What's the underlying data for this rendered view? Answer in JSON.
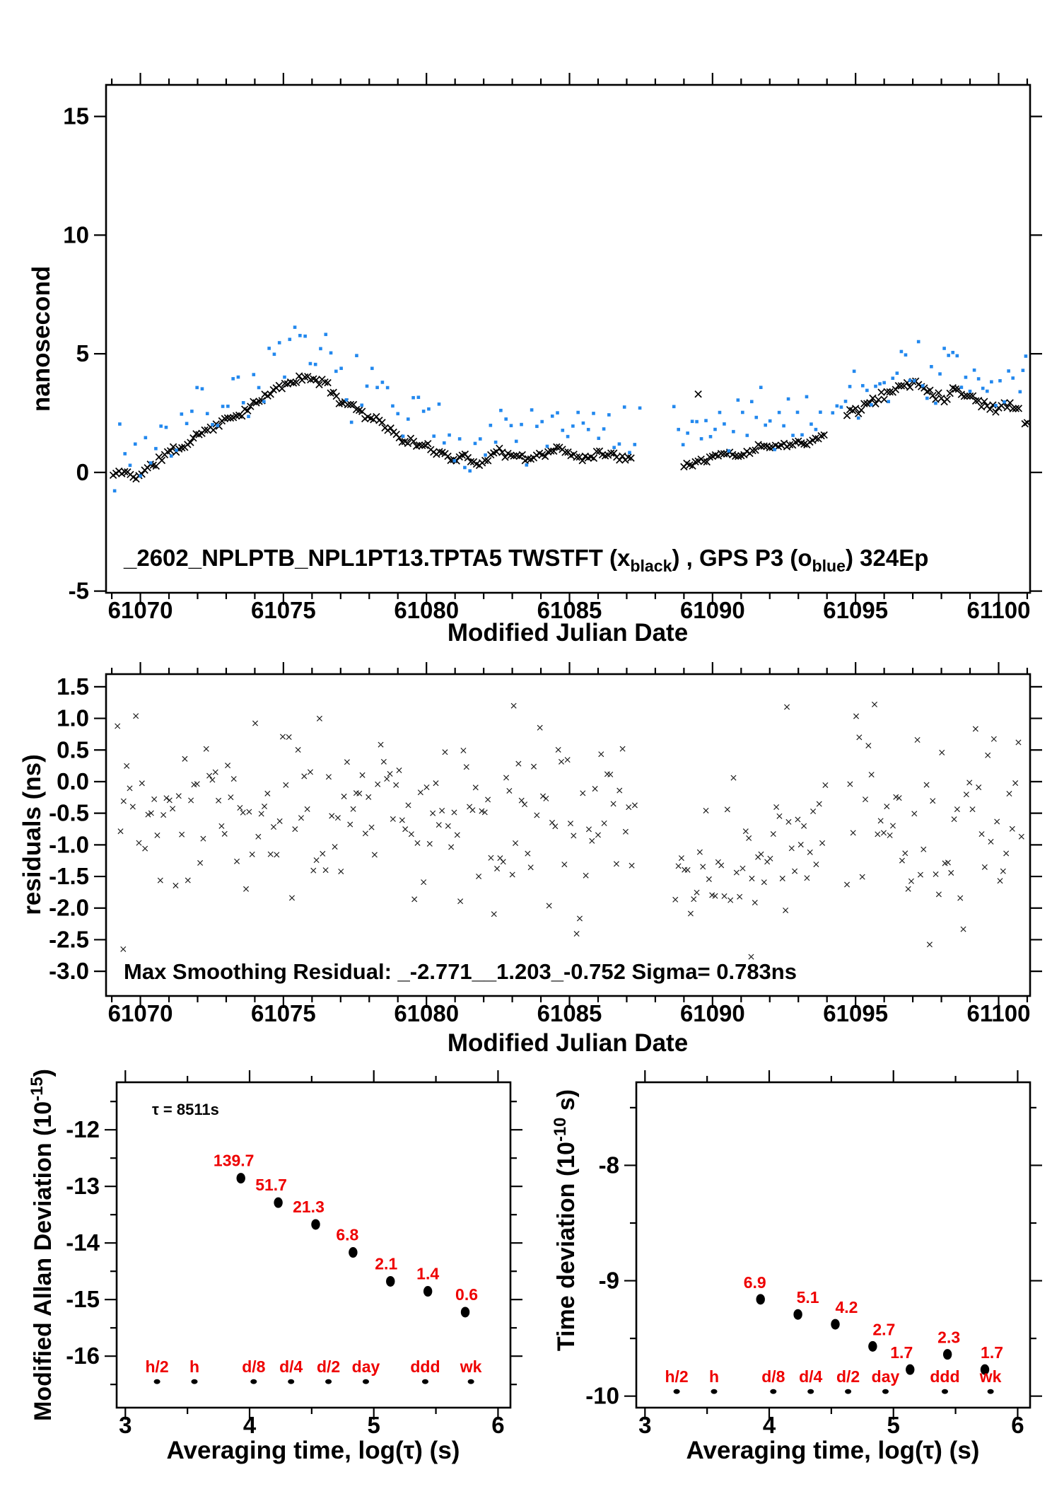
{
  "colors": {
    "background": "#ffffff",
    "axis": "#000000",
    "twstft_black": "#000000",
    "gps_blue": "#2288ee",
    "red_annotation": "#ee0000",
    "residual_marker": "#1a1a1a"
  },
  "chart_data": [
    {
      "type": "scatter",
      "panel": "time-series",
      "title_segments": [
        {
          "t": "_2602_NPLPTB_NPL1PT13.TPTA5     TWSTFT (x"
        },
        {
          "t": "black",
          "sub": true
        },
        {
          "t": ") ,  GPS P3 (o"
        },
        {
          "t": "blue",
          "sub": true
        },
        {
          "t": ")  324Ep"
        }
      ],
      "xlabel": "Modified Julian Date",
      "ylabel": "nanosecond",
      "xlim": [
        61068.8,
        61101.1
      ],
      "ylim": [
        -5.07,
        16.33
      ],
      "xticks": {
        "values": [
          61070,
          61075,
          61080,
          61085,
          61090,
          61095,
          61100
        ],
        "labels": [
          "61070",
          "61075",
          "61080",
          "61085",
          "61090",
          "61095",
          "61100"
        ],
        "minor_step": 1
      },
      "yticks": {
        "values": [
          -5,
          0,
          5,
          10,
          15
        ],
        "labels": [
          "-5",
          "0",
          "5",
          "10",
          "15"
        ]
      },
      "series": [
        {
          "name": "TWSTFT",
          "marker": "x",
          "color": "#000000",
          "seed": 11,
          "anchors": [
            [
              61069.0,
              -0.15
            ],
            [
              61069.4,
              0.05
            ],
            [
              61069.8,
              -0.2
            ],
            [
              61070.2,
              0.1
            ],
            [
              61070.6,
              0.45
            ],
            [
              61071.0,
              0.9
            ],
            [
              61071.5,
              1.05
            ],
            [
              61072.0,
              1.6
            ],
            [
              61072.5,
              1.9
            ],
            [
              61073.0,
              2.2
            ],
            [
              61073.5,
              2.5
            ],
            [
              61074.0,
              2.85
            ],
            [
              61074.5,
              3.3
            ],
            [
              61075.0,
              3.7
            ],
            [
              61075.5,
              3.9
            ],
            [
              61075.9,
              4.0
            ],
            [
              61076.3,
              3.85
            ],
            [
              61076.7,
              3.45
            ],
            [
              61077.0,
              3.0
            ],
            [
              61077.4,
              2.85
            ],
            [
              61078.0,
              2.3
            ],
            [
              61078.4,
              2.2
            ],
            [
              61079.0,
              1.45
            ],
            [
              61079.5,
              1.25
            ],
            [
              61080.0,
              1.05
            ],
            [
              61080.5,
              0.85
            ],
            [
              61081.0,
              0.55
            ],
            [
              61081.3,
              0.75
            ],
            [
              61081.7,
              0.35
            ],
            [
              61082.0,
              0.5
            ],
            [
              61082.5,
              0.9
            ],
            [
              61083.0,
              0.7
            ],
            [
              61083.5,
              0.55
            ],
            [
              61084.0,
              0.75
            ],
            [
              61084.5,
              1.0
            ],
            [
              61085.0,
              0.8
            ],
            [
              61085.5,
              0.6
            ],
            [
              61086.0,
              0.85
            ],
            [
              61086.5,
              0.7
            ],
            [
              61087.2,
              0.65
            ],
            [
              61089.0,
              0.35
            ],
            [
              61089.5,
              0.5
            ],
            [
              61090.0,
              0.65
            ],
            [
              61090.5,
              0.8
            ],
            [
              61091.0,
              0.7
            ],
            [
              61091.5,
              1.0
            ],
            [
              61092.0,
              1.2
            ],
            [
              61092.5,
              1.1
            ],
            [
              61093.0,
              1.35
            ],
            [
              61093.5,
              1.3
            ],
            [
              61093.9,
              1.55
            ],
            [
              61094.7,
              2.55
            ],
            [
              61095.1,
              2.7
            ],
            [
              61095.5,
              2.9
            ],
            [
              61096.0,
              3.25
            ],
            [
              61096.4,
              3.5
            ],
            [
              61096.8,
              3.75
            ],
            [
              61097.1,
              3.8
            ],
            [
              61097.4,
              3.6
            ],
            [
              61097.7,
              3.35
            ],
            [
              61098.0,
              3.15
            ],
            [
              61098.3,
              3.35
            ],
            [
              61098.6,
              3.5
            ],
            [
              61098.9,
              3.3
            ],
            [
              61099.2,
              3.05
            ],
            [
              61099.5,
              2.85
            ],
            [
              61099.8,
              2.7
            ],
            [
              61100.1,
              2.8
            ],
            [
              61100.4,
              2.9
            ],
            [
              61100.8,
              2.7
            ]
          ],
          "segments": [
            {
              "range": [
                61069.05,
                61087.15
              ],
              "step": 0.1,
              "jitter": 0.1
            },
            {
              "range": [
                61089.0,
                61093.9
              ],
              "step": 0.1,
              "jitter": 0.09
            },
            {
              "range": [
                61094.7,
                61100.75
              ],
              "step": 0.1,
              "jitter": 0.13
            }
          ],
          "extra_points": [
            [
              61089.5,
              3.3
            ],
            [
              61101.0,
              2.1
            ],
            [
              61100.92,
              2.05
            ]
          ]
        },
        {
          "name": "GPS P3",
          "marker": "square",
          "color": "#2288ee",
          "seed": 7,
          "base_series": 0,
          "segments": [
            {
              "range": [
                61069.1,
                61087.55
              ],
              "step": 0.18,
              "offset": 0.9,
              "jitter": 0.85
            },
            {
              "range": [
                61088.65,
                61093.85
              ],
              "step": 0.16,
              "offset": 1.1,
              "jitter": 0.8
            },
            {
              "range": [
                61094.2,
                61100.6
              ],
              "step": 0.15,
              "offset": 0.7,
              "jitter": 0.95
            }
          ],
          "extra_points": [
            [
              61100.85,
              4.3
            ],
            [
              61100.75,
              3.4
            ],
            [
              61100.95,
              4.9
            ]
          ]
        }
      ]
    },
    {
      "type": "scatter",
      "panel": "residuals",
      "annotation": "Max Smoothing Residual: _-2.771__1.203_-0.752  Sigma= 0.783ns",
      "xlabel": "Modified Julian Date",
      "ylabel": "residuals (ns)",
      "xlim": [
        61068.8,
        61101.1
      ],
      "ylim": [
        -3.39,
        1.7
      ],
      "xticks": {
        "values": [
          61070,
          61075,
          61080,
          61085,
          61090,
          61095,
          61100
        ],
        "labels": [
          "61070",
          "61075",
          "61080",
          "61085",
          "61090",
          "61095",
          "61100"
        ],
        "minor_step": 1
      },
      "yticks": {
        "values": [
          -3.0,
          -2.5,
          -2.0,
          -1.5,
          -1.0,
          -0.5,
          0.0,
          0.5,
          1.0,
          1.5
        ],
        "labels": [
          "-3.0",
          "-2.5",
          "-2.0",
          "-1.5",
          "-1.0",
          "-0.5",
          "0.0",
          "0.5",
          "1.0",
          "1.5"
        ]
      },
      "series": [
        {
          "name": "residuals",
          "marker": "x-small",
          "color": "#1a1a1a",
          "seed": 23,
          "clip": [
            -2.8,
            1.22
          ],
          "segments": [
            {
              "range": [
                61069.2,
                61087.3
              ],
              "step": 0.107,
              "mean": -0.55,
              "sd": 0.72
            },
            {
              "range": [
                61088.7,
                61094.0
              ],
              "step": 0.107,
              "mean": -1.05,
              "sd": 0.62
            },
            {
              "range": [
                61094.7,
                61100.8
              ],
              "step": 0.107,
              "mean": -0.8,
              "sd": 0.72
            }
          ],
          "extra_points": [
            [
              61069.4,
              -2.65
            ],
            [
              61091.35,
              -2.77
            ],
            [
              61083.05,
              1.2
            ],
            [
              61092.6,
              1.18
            ]
          ]
        }
      ]
    },
    {
      "type": "scatter",
      "panel": "modified-allan-deviation",
      "annotation": "τ = 8511s",
      "xlabel": "Averaging time, log(τ) (s)",
      "ylabel_segments": [
        {
          "t": "Modified Allan Deviation (10"
        },
        {
          "t": "-15",
          "sup": true
        },
        {
          "t": ")"
        }
      ],
      "xlim": [
        2.93,
        6.1
      ],
      "ylim": [
        -16.91,
        -11.16
      ],
      "xticks": {
        "values": [
          3,
          4,
          5,
          6
        ],
        "labels": [
          "3",
          "4",
          "5",
          "6"
        ],
        "minor_step": 0.5
      },
      "yticks": {
        "values": [
          -16,
          -15,
          -14,
          -13,
          -12
        ],
        "labels": [
          "-16",
          "-15",
          "-14",
          "-13",
          "-12"
        ],
        "minor_step": 0.5
      },
      "points": {
        "logx": [
          3.93,
          4.231,
          4.532,
          4.833,
          5.134,
          5.435,
          5.736
        ],
        "logy": [
          -12.855,
          -13.287,
          -13.672,
          -14.167,
          -14.678,
          -14.854,
          -15.222
        ],
        "labels": [
          "139.7",
          "51.7",
          "21.3",
          "6.8",
          "2.1",
          "1.4",
          "0.6"
        ],
        "label_dx": [
          -10,
          -10,
          -10,
          -8,
          -6,
          0,
          2
        ],
        "label_dy": -17
      },
      "ref_marks": {
        "labels": [
          "h/2",
          "h",
          "d/8",
          "d/4",
          "d/2",
          "day",
          "ddd",
          "wk"
        ],
        "logx": [
          3.255,
          3.556,
          4.033,
          4.334,
          4.635,
          4.936,
          5.414,
          5.782
        ],
        "y": -16.45
      }
    },
    {
      "type": "scatter",
      "panel": "time-deviation",
      "xlabel": "Averaging time, log(τ) (s)",
      "ylabel_segments": [
        {
          "t": "Time deviation (10"
        },
        {
          "t": "-10",
          "sup": true
        },
        {
          "t": " s)"
        }
      ],
      "xlim": [
        2.93,
        6.1
      ],
      "ylim": [
        -10.1,
        -7.28
      ],
      "xticks": {
        "values": [
          3,
          4,
          5,
          6
        ],
        "labels": [
          "3",
          "4",
          "5",
          "6"
        ],
        "minor_step": 0.5
      },
      "yticks": {
        "values": [
          -10,
          -9,
          -8
        ],
        "labels": [
          "-10",
          "-9",
          "-8"
        ],
        "minor_step": 0.5
      },
      "points": {
        "logx": [
          3.93,
          4.231,
          4.532,
          4.833,
          5.134,
          5.435,
          5.736
        ],
        "logy": [
          -9.161,
          -9.292,
          -9.377,
          -9.569,
          -9.77,
          -9.638,
          -9.77
        ],
        "labels": [
          "6.9",
          "5.1",
          "4.2",
          "2.7",
          "1.7",
          "2.3",
          "1.7"
        ],
        "label_dx": [
          -8,
          14,
          16,
          16,
          -12,
          2,
          10
        ],
        "label_dy": -16
      },
      "ref_marks": {
        "labels": [
          "h/2",
          "h",
          "d/8",
          "d/4",
          "d/2",
          "day",
          "ddd",
          "wk"
        ],
        "logx": [
          3.255,
          3.556,
          4.033,
          4.334,
          4.635,
          4.936,
          5.414,
          5.782
        ],
        "y": -9.96
      }
    }
  ]
}
